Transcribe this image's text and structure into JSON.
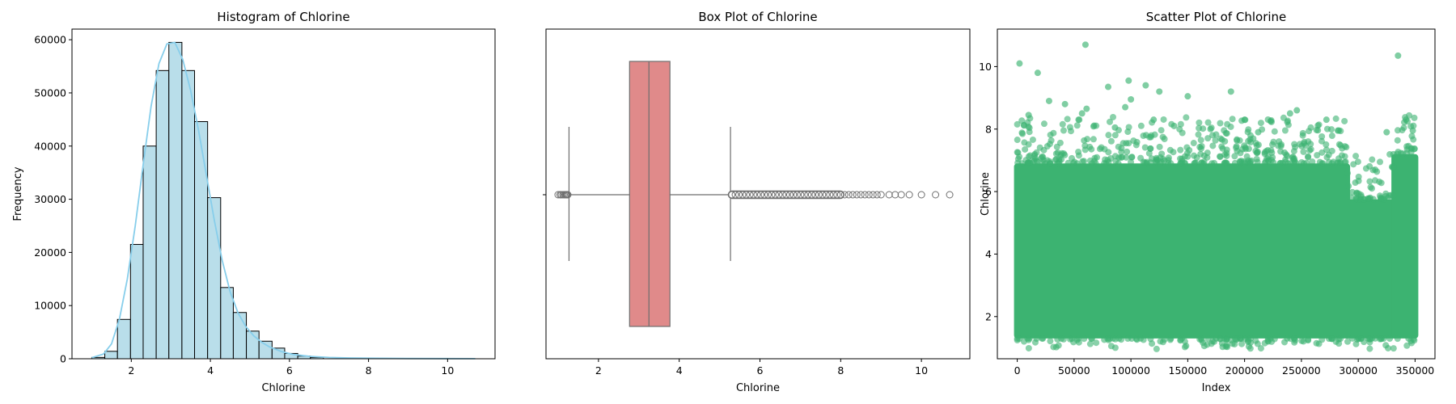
{
  "figure": {
    "colors": {
      "hist_fill": "#add8e6",
      "kde_line": "#87ceeb",
      "box_fill": "#e08a8a",
      "box_line": "#6e6e6e",
      "scatter_point": "#3cb371"
    }
  },
  "chart_data": [
    {
      "type": "bar",
      "title": "Histogram of Chlorine",
      "xlabel": "Chlorine",
      "ylabel": "Frequency",
      "xlim": [
        0.5,
        11.2
      ],
      "ylim": [
        0,
        62000
      ],
      "xticks": [
        2,
        4,
        6,
        8,
        10
      ],
      "yticks": [
        0,
        10000,
        20000,
        30000,
        40000,
        50000,
        60000
      ],
      "bins": [
        {
          "x0": 1.0,
          "x1": 1.33,
          "value": 250
        },
        {
          "x0": 1.33,
          "x1": 1.65,
          "value": 1400
        },
        {
          "x0": 1.65,
          "x1": 1.98,
          "value": 7400
        },
        {
          "x0": 1.98,
          "x1": 2.3,
          "value": 21500
        },
        {
          "x0": 2.3,
          "x1": 2.63,
          "value": 40000
        },
        {
          "x0": 2.63,
          "x1": 2.95,
          "value": 54200
        },
        {
          "x0": 2.95,
          "x1": 3.28,
          "value": 59500
        },
        {
          "x0": 3.28,
          "x1": 3.6,
          "value": 54200
        },
        {
          "x0": 3.6,
          "x1": 3.93,
          "value": 44600
        },
        {
          "x0": 3.93,
          "x1": 4.26,
          "value": 30300
        },
        {
          "x0": 4.26,
          "x1": 4.58,
          "value": 13400
        },
        {
          "x0": 4.58,
          "x1": 4.91,
          "value": 8700
        },
        {
          "x0": 4.91,
          "x1": 5.23,
          "value": 5200
        },
        {
          "x0": 5.23,
          "x1": 5.56,
          "value": 3300
        },
        {
          "x0": 5.56,
          "x1": 5.88,
          "value": 2000
        },
        {
          "x0": 5.88,
          "x1": 6.21,
          "value": 1000
        },
        {
          "x0": 6.21,
          "x1": 6.53,
          "value": 500
        },
        {
          "x0": 6.53,
          "x1": 6.86,
          "value": 250
        }
      ],
      "kde": {
        "x": [
          1.0,
          1.3,
          1.5,
          1.7,
          1.9,
          2.1,
          2.3,
          2.5,
          2.7,
          2.9,
          3.1,
          3.3,
          3.5,
          3.7,
          3.9,
          4.1,
          4.3,
          4.5,
          4.7,
          4.9,
          5.1,
          5.3,
          5.5,
          5.8,
          6.1,
          6.5,
          7.0,
          7.5,
          8.0,
          9.0,
          10.0,
          10.7
        ],
        "y": [
          200,
          900,
          2800,
          7500,
          15000,
          25000,
          36500,
          47500,
          55500,
          59200,
          59500,
          56300,
          50500,
          43000,
          34500,
          26000,
          18500,
          12600,
          8600,
          6000,
          4300,
          3100,
          2200,
          1350,
          800,
          450,
          250,
          150,
          100,
          50,
          30,
          20
        ]
      }
    },
    {
      "type": "box",
      "title": "Box Plot of Chlorine",
      "xlabel": "Chlorine",
      "xlim": [
        0.7,
        11.2
      ],
      "xticks": [
        2,
        4,
        6,
        8,
        10
      ],
      "stats": {
        "whisker_low": 1.27,
        "q1": 2.77,
        "median": 3.25,
        "q3": 3.77,
        "whisker_high": 5.27
      },
      "outliers_low": [
        1.0,
        1.05,
        1.08,
        1.12,
        1.15,
        1.18,
        1.2,
        1.22,
        1.24
      ],
      "outlier_band_high": [
        5.3,
        8.0
      ],
      "outliers_high": [
        8.1,
        8.2,
        8.3,
        8.4,
        8.5,
        8.6,
        8.7,
        8.8,
        8.9,
        9.0,
        9.2,
        9.35,
        9.5,
        9.7,
        10.0,
        10.35,
        10.7
      ]
    },
    {
      "type": "scatter",
      "title": "Scatter Plot of Chlorine",
      "xlabel": "Index",
      "ylabel": "Chlorine",
      "xlim": [
        -17500,
        367500
      ],
      "ylim": [
        0.65,
        11.2
      ],
      "xticks": [
        0,
        50000,
        100000,
        150000,
        200000,
        250000,
        300000,
        350000
      ],
      "yticks": [
        2,
        4,
        6,
        8,
        10
      ],
      "n_points": 350000,
      "dense_band": {
        "segments": [
          {
            "x0": 0,
            "x1": 290000,
            "low": 1.3,
            "high": 6.9
          },
          {
            "x0": 290000,
            "x1": 332000,
            "low": 1.3,
            "high": 5.75
          },
          {
            "x0": 332000,
            "x1": 350000,
            "low": 1.3,
            "high": 7.2
          }
        ]
      },
      "notable_points": [
        [
          2000,
          10.1
        ],
        [
          18000,
          9.8
        ],
        [
          60000,
          10.7
        ],
        [
          98000,
          9.55
        ],
        [
          113000,
          9.4
        ],
        [
          125000,
          9.2
        ],
        [
          150000,
          9.05
        ],
        [
          188000,
          9.2
        ],
        [
          335000,
          10.35
        ],
        [
          80000,
          9.35
        ],
        [
          42000,
          8.8
        ],
        [
          28000,
          8.9
        ],
        [
          10000,
          8.45
        ],
        [
          246000,
          8.6
        ],
        [
          342000,
          8.3
        ],
        [
          200000,
          8.3
        ],
        [
          170000,
          8.0
        ],
        [
          95000,
          8.7
        ],
        [
          100000,
          8.95
        ],
        [
          272000,
          8.3
        ],
        [
          57000,
          8.5
        ],
        [
          120000,
          8.3
        ],
        [
          240000,
          8.5
        ],
        [
          325000,
          7.9
        ],
        [
          212000,
          7.9
        ],
        [
          282000,
          7.95
        ],
        [
          138000,
          8.1
        ],
        [
          61000,
          8.65
        ],
        [
          86000,
          8.05
        ],
        [
          348000,
          7.95
        ]
      ]
    }
  ]
}
